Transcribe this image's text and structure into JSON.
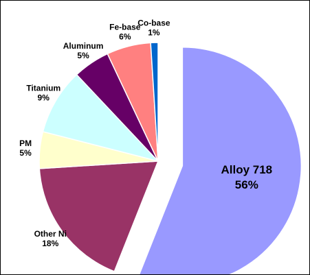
{
  "chart_data": {
    "type": "pie",
    "categories": [
      "Alloy 718",
      "Other Ni",
      "PM",
      "Titanium",
      "Aluminum",
      "Fe-base",
      "Co-base"
    ],
    "values": [
      56,
      18,
      5,
      9,
      5,
      6,
      1
    ],
    "value_labels": [
      "56%",
      "18%",
      "5%",
      "9%",
      "5%",
      "6%",
      "1%"
    ],
    "colors": [
      "#9999ff",
      "#993366",
      "#ffffcc",
      "#ccffff",
      "#660066",
      "#ff8080",
      "#0066cc"
    ],
    "exploded": [
      "Alloy 718"
    ]
  }
}
